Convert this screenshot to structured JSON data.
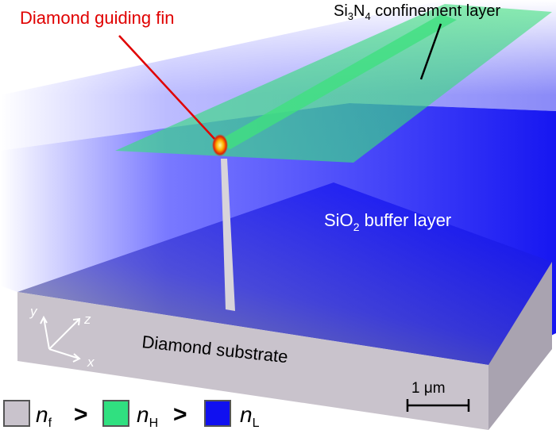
{
  "labels": {
    "fin": "Diamond guiding fin",
    "confinement": [
      "Si",
      "3",
      "N",
      "4",
      " confinement layer"
    ],
    "buffer": [
      "SiO",
      "2",
      " buffer layer"
    ],
    "substrate": "Diamond substrate",
    "scale": "1 μm",
    "axes": {
      "x": "x",
      "y": "y",
      "z": "z"
    }
  },
  "legend": {
    "items": [
      {
        "symbol": "n",
        "subscript": "f"
      },
      {
        "symbol": "n",
        "subscript": "H"
      },
      {
        "symbol": "n",
        "subscript": "L"
      }
    ],
    "separators": [
      ">",
      ">"
    ]
  }
}
